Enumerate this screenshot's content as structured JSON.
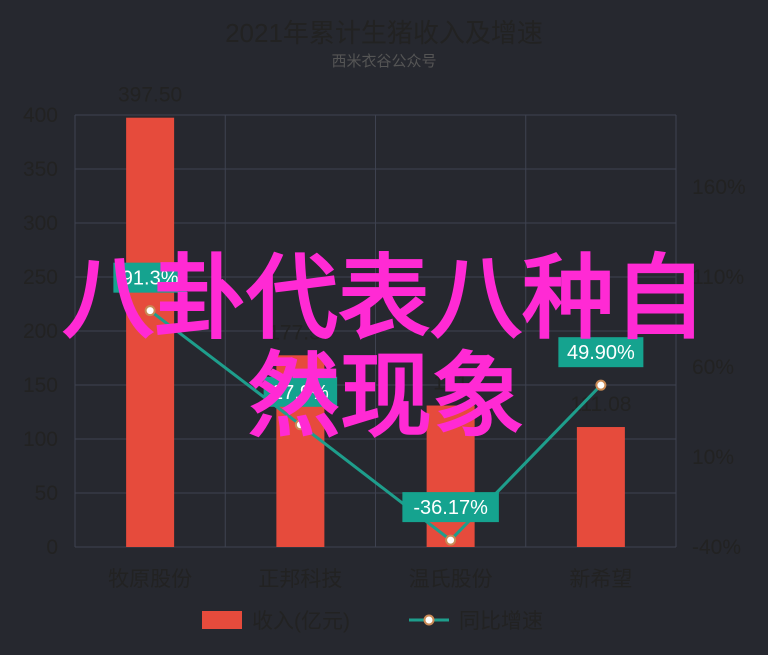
{
  "colors": {
    "background": "#26282f",
    "bar": "#e64b3c",
    "line": "#1e9e8c",
    "label_bg": "#15a38f",
    "overlay_text": "#ff2ad4",
    "grid": "#3e4250",
    "text": "#222222"
  },
  "chart_data": {
    "type": "bar",
    "title": "2021年累计生猪收入及增速",
    "subtitle": "西米衣谷公众号",
    "categories": [
      "牧原股份",
      "正邦科技",
      "温氏股份",
      "新希望"
    ],
    "series": [
      {
        "name": "收入(亿元)",
        "type": "bar",
        "axis": "left",
        "values": [
          397.5,
          177.5,
          131,
          111.08
        ],
        "labels": [
          "397.50",
          "177.50",
          "131",
          "111.08"
        ]
      },
      {
        "name": "同比增速",
        "type": "line",
        "axis": "right",
        "values": [
          91.3,
          27.9,
          -36.17,
          49.9
        ],
        "labels": [
          "91.3%",
          "27.9%",
          "-36.17%",
          "49.90%"
        ]
      }
    ],
    "y_left": {
      "min": 0,
      "max": 400,
      "ticks": [
        0,
        50,
        100,
        150,
        200,
        250,
        300,
        350,
        400
      ]
    },
    "y_right": {
      "min": -40,
      "max": 200,
      "ticks": [
        -40,
        10,
        60,
        110,
        160
      ],
      "tick_labels": [
        "-40%",
        "10%",
        "60%",
        "110%",
        "160%"
      ]
    },
    "grid": true,
    "legend": {
      "position": "bottom",
      "items": [
        "收入(亿元)",
        "同比增速"
      ]
    }
  },
  "overlay": {
    "line1": "八卦代表八种自",
    "line2": "然现象"
  }
}
